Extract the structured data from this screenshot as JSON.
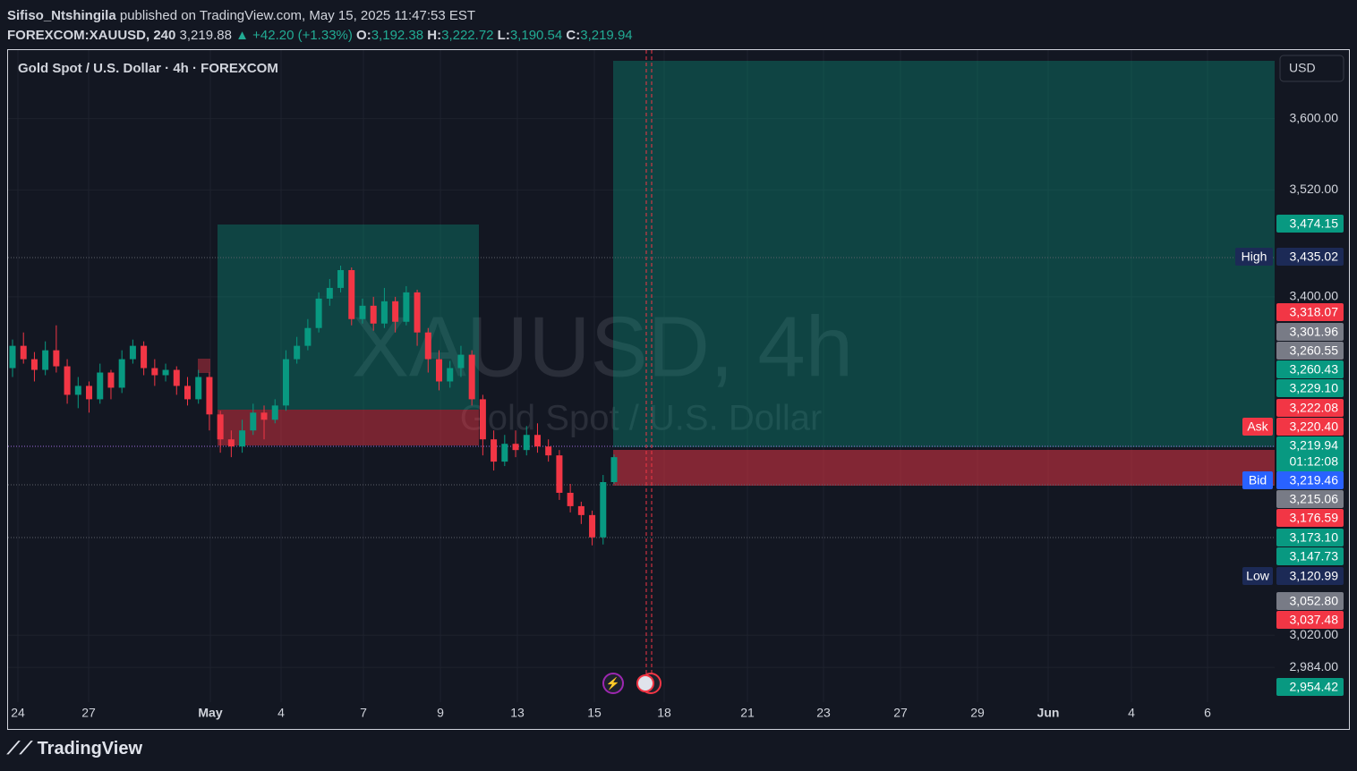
{
  "header": {
    "author": "Sifiso_Ntshingila",
    "published": "published on TradingView.com, May 15, 2025 11:47:53 EST",
    "symbol": "FOREXCOM:XAUUSD, 240",
    "last": "3,219.88",
    "change": "▲ +42.20 (+1.33%)",
    "ohlc": [
      {
        "key": "O:",
        "value": "3,192.38"
      },
      {
        "key": "H:",
        "value": "3,222.72"
      },
      {
        "key": "L:",
        "value": "3,190.54"
      },
      {
        "key": "C:",
        "value": "3,219.94"
      }
    ]
  },
  "chart_data": {
    "type": "candlestick",
    "title": "Gold Spot / U.S. Dollar · 4h · FOREXCOM",
    "watermark": "XAUUSD, 4h",
    "watermark_sub": "Gold Spot / U.S. Dollar",
    "currency": "USD",
    "up_color": "#089981",
    "down_color": "#f23645",
    "series": [
      {
        "name": "XAUUSD",
        "open": [
          3320,
          3345,
          3330,
          3318,
          3340,
          3322,
          3290,
          3300,
          3285,
          3315,
          3298,
          3330,
          3345,
          3320,
          3312,
          3318,
          3300,
          3285,
          3310,
          3268,
          3240,
          3232,
          3250,
          3270,
          3262,
          3278,
          3330,
          3345,
          3365,
          3398,
          3410,
          3430,
          3375,
          3390,
          3370,
          3395,
          3372,
          3405,
          3360,
          3330,
          3305,
          3320,
          3335,
          3285,
          3240,
          3215,
          3235,
          3228,
          3245,
          3232,
          3222,
          3180,
          3165,
          3155,
          3130,
          3192
        ],
        "high": [
          3352,
          3360,
          3338,
          3350,
          3368,
          3330,
          3310,
          3305,
          3325,
          3318,
          3340,
          3352,
          3350,
          3330,
          3325,
          3322,
          3310,
          3318,
          3315,
          3272,
          3250,
          3262,
          3280,
          3278,
          3285,
          3340,
          3355,
          3375,
          3405,
          3420,
          3435,
          3433,
          3398,
          3400,
          3410,
          3400,
          3412,
          3408,
          3365,
          3340,
          3328,
          3345,
          3340,
          3290,
          3250,
          3245,
          3250,
          3255,
          3258,
          3240,
          3228,
          3190,
          3170,
          3160,
          3200,
          3223
        ],
        "low": [
          3310,
          3325,
          3305,
          3312,
          3315,
          3280,
          3275,
          3270,
          3280,
          3285,
          3292,
          3325,
          3312,
          3300,
          3305,
          3290,
          3278,
          3280,
          3250,
          3225,
          3220,
          3225,
          3245,
          3240,
          3258,
          3272,
          3325,
          3340,
          3360,
          3390,
          3405,
          3368,
          3370,
          3362,
          3365,
          3360,
          3368,
          3345,
          3315,
          3295,
          3298,
          3310,
          3278,
          3222,
          3205,
          3210,
          3220,
          3222,
          3225,
          3215,
          3172,
          3158,
          3145,
          3121,
          3122,
          3190
        ],
        "close": [
          3345,
          3330,
          3318,
          3340,
          3322,
          3290,
          3300,
          3285,
          3315,
          3298,
          3330,
          3345,
          3320,
          3312,
          3318,
          3300,
          3285,
          3310,
          3268,
          3240,
          3232,
          3250,
          3270,
          3262,
          3278,
          3330,
          3345,
          3365,
          3398,
          3410,
          3430,
          3375,
          3390,
          3370,
          3395,
          3372,
          3405,
          3360,
          3330,
          3305,
          3320,
          3335,
          3285,
          3240,
          3215,
          3235,
          3228,
          3245,
          3232,
          3222,
          3180,
          3165,
          3155,
          3130,
          3192,
          3220
        ]
      }
    ],
    "ylim": [
      2945,
      3677
    ],
    "yticks": [
      {
        "value": 3600,
        "label": "3,600.00"
      },
      {
        "value": 3520,
        "label": "3,520.00"
      },
      {
        "value": 3400,
        "label": "3,400.00"
      },
      {
        "value": 3020,
        "label": "3,020.00"
      },
      {
        "value": 2984,
        "label": "2,984.00"
      }
    ],
    "x_labels": [
      "24",
      "27",
      "May",
      "4",
      "7",
      "9",
      "13",
      "15",
      "18",
      "21",
      "23",
      "27",
      "29",
      "Jun",
      "4",
      "6"
    ],
    "price_labels": [
      {
        "value": 3474.15,
        "label": "3,474.15",
        "color": "#089981"
      },
      {
        "value": 3435.02,
        "label": "3,435.02",
        "color": "#1c2a56",
        "tag": "High"
      },
      {
        "value": 3318.07,
        "label": "3,318.07",
        "color": "#f23645"
      },
      {
        "value": 3301.96,
        "label": "3,301.96",
        "color": "#787b86"
      },
      {
        "value": 3260.55,
        "label": "3,260.55",
        "color": "#787b86"
      },
      {
        "value": 3260.43,
        "label": "3,260.43",
        "color": "#089981"
      },
      {
        "value": 3229.1,
        "label": "3,229.10",
        "color": "#089981"
      },
      {
        "value": 3222.08,
        "label": "3,222.08",
        "color": "#f23645"
      },
      {
        "value": 3220.4,
        "label": "3,220.40",
        "color": "#f23645",
        "tag": "Ask"
      },
      {
        "value": 3219.94,
        "label": "3,219.94",
        "color": "#089981",
        "countdown": "01:12:08"
      },
      {
        "value": 3219.46,
        "label": "3,219.46",
        "color": "#2962ff",
        "tag": "Bid"
      },
      {
        "value": 3215.06,
        "label": "3,215.06",
        "color": "#787b86"
      },
      {
        "value": 3176.59,
        "label": "3,176.59",
        "color": "#f23645"
      },
      {
        "value": 3173.1,
        "label": "3,173.10",
        "color": "#089981"
      },
      {
        "value": 3147.73,
        "label": "3,147.73",
        "color": "#089981"
      },
      {
        "value": 3120.99,
        "label": "3,120.99",
        "color": "#1c2a56",
        "tag": "Low"
      },
      {
        "value": 3052.8,
        "label": "3,052.80",
        "color": "#787b86"
      },
      {
        "value": 3037.48,
        "label": "3,037.48",
        "color": "#f23645"
      },
      {
        "value": 2954.42,
        "label": "2,954.42",
        "color": "#089981"
      }
    ]
  },
  "footer": {
    "brand": "TradingView"
  }
}
